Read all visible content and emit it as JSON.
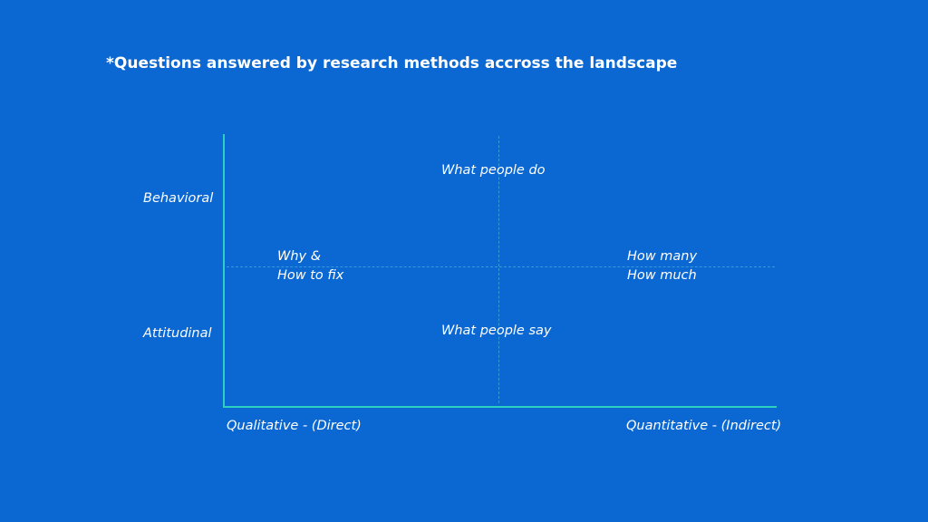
{
  "title": "*Questions answered by research methods accross the landscape",
  "colors": {
    "background": "#0b67d2",
    "axis": "#2bd0c0",
    "text": "#ffffff"
  },
  "y_axis": {
    "top_label": "Behavioral",
    "bottom_label": "Attitudinal"
  },
  "x_axis": {
    "left_label": "Qualitative - (Direct)",
    "right_label": "Quantitative - (Indirect)"
  },
  "quadrant_labels": {
    "top": "What people do",
    "bottom": "What people say",
    "left_line1": "Why &",
    "left_line2": "How to fix",
    "right_line1": "How many",
    "right_line2": "How much"
  }
}
